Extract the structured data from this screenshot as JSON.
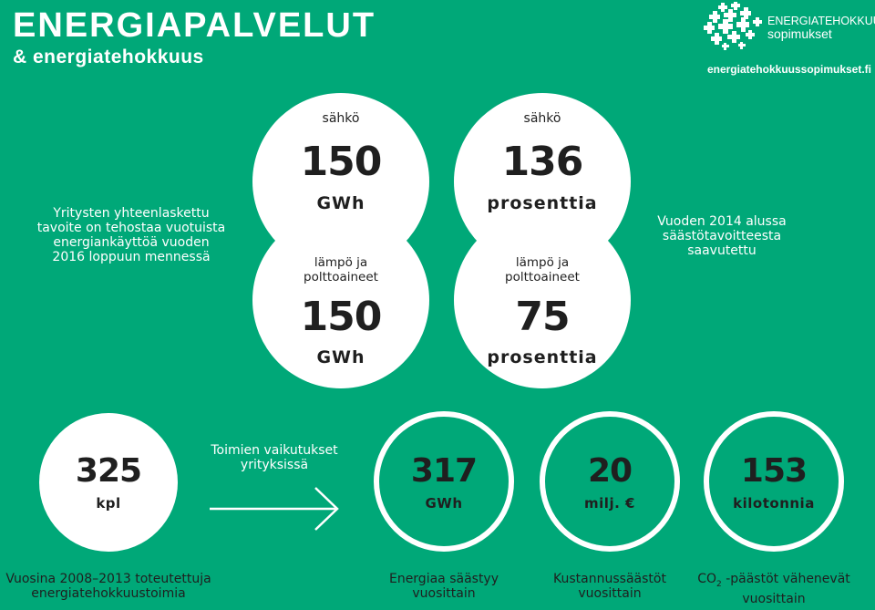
{
  "header": {
    "title": "ENERGIAPALVELUT",
    "subtitle": "& energiatehokkuus",
    "logo_line1": "ENERGIATEHOKKUUS-",
    "logo_line2": "sopimukset",
    "website": "energiatehokkuussopimukset.fi"
  },
  "left_text": "Yritysten yhteenlaskettu tavoite on tehostaa vuotuista energiankäyttöä vuoden 2016 loppuun mennessä",
  "right_text": "Vuoden 2014 alussa säästötavoitteesta saavutettu",
  "target": {
    "top_label": "sähkö",
    "top_value": "150",
    "top_unit": "GWh",
    "bottom_label": "lämpö ja polttoaineet",
    "bottom_value": "150",
    "bottom_unit": "GWh"
  },
  "achieved": {
    "top_label": "sähkö",
    "top_value": "136",
    "top_unit": "prosenttia",
    "bottom_label": "lämpö ja polttoaineet",
    "bottom_value": "75",
    "bottom_unit": "prosenttia"
  },
  "actions": {
    "value": "325",
    "unit": "kpl",
    "caption": "Vuosina 2008–2013 toteutettuja energiatehokkuustoimia"
  },
  "effects_label": "Toimien vaikutukset yrityksissä",
  "effects": [
    {
      "value": "317",
      "unit": "GWh",
      "caption": "Energiaa säästyy vuosittain"
    },
    {
      "value": "20",
      "unit": "milj. €",
      "caption": "Kustannussäästöt vuosittain"
    },
    {
      "value": "153",
      "unit": "kilotonnia",
      "caption_pre": "CO",
      "caption_sub": "2",
      "caption_post": " -päästöt vähenevät vuosittain"
    }
  ],
  "colors": {
    "background": "#00a878",
    "circle": "#ffffff",
    "text": "#1f1f1f"
  }
}
